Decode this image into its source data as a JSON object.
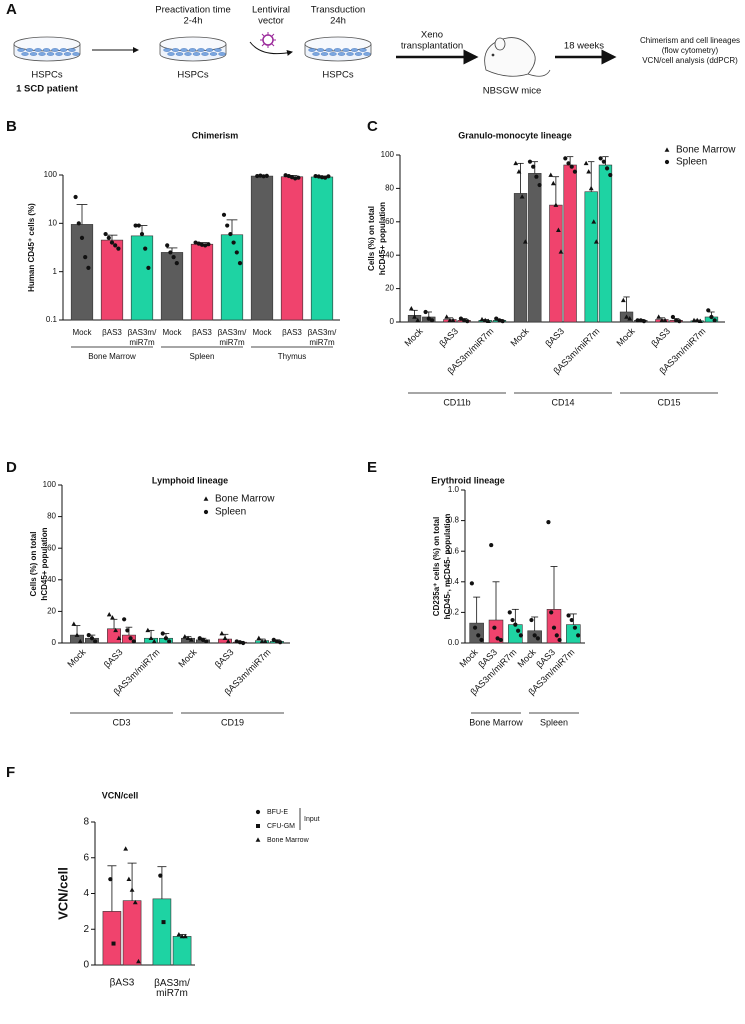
{
  "schematic": {
    "label": "A",
    "dish_labels": [
      "HSPCs",
      "HSPCs",
      "HSPCs"
    ],
    "patient": "1 SCD patient",
    "preactivation": [
      "Preactivation time",
      "2-4h"
    ],
    "vector": [
      "Lentiviral",
      "vector"
    ],
    "transduction": [
      "Transduction",
      "24h"
    ],
    "xeno": [
      "Xeno",
      "transplantation"
    ],
    "mice": "NBSGW mice",
    "weeks": "18 weeks",
    "analysis": [
      "Chimerism and cell lineages",
      "(flow cytometry)",
      "VCN/cell analysis (ddPCR)"
    ]
  },
  "chart_data": [
    {
      "type": "bar",
      "label": "B",
      "title": "Chimerism",
      "ylabel": [
        "Human CD45⁺ cells (%)"
      ],
      "log": true,
      "ylim": [
        0.1,
        100
      ],
      "yticks": [
        0.1,
        1,
        10,
        100
      ],
      "groups": [
        "Bone Marrow",
        "Spleen",
        "Thymus"
      ],
      "categories": [
        "Mock",
        "βAS3",
        "βAS3m/ miR7m"
      ],
      "colors": [
        "#5c5c5c",
        "#f0436d",
        "#1ed3a3"
      ],
      "markers": [
        "circle"
      ],
      "values": [
        [
          [
            9.5
          ],
          [
            4.5
          ],
          [
            5.5
          ]
        ],
        [
          [
            2.5
          ],
          [
            3.7
          ],
          [
            5.8
          ]
        ],
        [
          [
            95
          ],
          [
            92
          ],
          [
            91
          ]
        ]
      ],
      "errors": [
        [
          [
            15
          ],
          [
            1.2
          ],
          [
            3.5
          ]
        ],
        [
          [
            0.6
          ],
          [
            0.3
          ],
          [
            6
          ]
        ],
        [
          [
            2
          ],
          [
            6
          ],
          [
            4
          ]
        ]
      ],
      "points": [
        [
          [
            [
              35,
              10,
              5,
              2,
              1.2
            ]
          ],
          [
            [
              6,
              5,
              4,
              3.5,
              3
            ]
          ],
          [
            [
              9,
              9,
              6,
              3,
              1.2
            ]
          ]
        ],
        [
          [
            [
              3.5,
              2.5,
              2,
              1.5
            ]
          ],
          [
            [
              4,
              3.8,
              3.6,
              3.5,
              3.7
            ]
          ],
          [
            [
              15,
              9,
              6,
              4,
              2.5,
              1.5
            ]
          ]
        ],
        [
          [
            [
              95,
              97,
              94,
              96
            ]
          ],
          [
            [
              99,
              95,
              90,
              85,
              88
            ]
          ],
          [
            [
              95,
              93,
              90,
              88,
              94
            ]
          ]
        ]
      ]
    },
    {
      "type": "bar",
      "label": "C",
      "title": "Granulo-monocyte lineage",
      "ylabel": [
        "Cells (%) on total",
        "hCD45+ population"
      ],
      "ylim": [
        0,
        100
      ],
      "yticks": [
        0,
        20,
        40,
        60,
        80,
        100
      ],
      "groups": [
        "CD11b",
        "CD14",
        "CD15"
      ],
      "categories": [
        "Mock",
        "βAS3",
        "βAS3m/miR7m"
      ],
      "colors": [
        "#5c5c5c",
        "#f0436d",
        "#1ed3a3"
      ],
      "markers": [
        "triangle",
        "circle"
      ],
      "legend": [
        "Bone Marrow",
        "Spleen"
      ],
      "values": [
        [
          [
            4,
            3
          ],
          [
            1.5,
            1
          ],
          [
            1,
            1
          ]
        ],
        [
          [
            77,
            89
          ],
          [
            70,
            94
          ],
          [
            78,
            94
          ]
        ],
        [
          [
            6,
            1
          ],
          [
            1.5,
            1
          ],
          [
            0.7,
            3
          ]
        ]
      ],
      "errors": [
        [
          [
            3,
            3
          ],
          [
            1,
            1
          ],
          [
            0.5,
            0.5
          ]
        ],
        [
          [
            18,
            7
          ],
          [
            17,
            5
          ],
          [
            18,
            5
          ]
        ],
        [
          [
            9,
            0.5
          ],
          [
            1,
            1
          ],
          [
            0.5,
            3
          ]
        ]
      ],
      "points": [
        [
          [
            [
              8,
              3,
              1
            ],
            [
              6,
              2,
              1
            ]
          ],
          [
            [
              3,
              1,
              1
            ],
            [
              2,
              1,
              0.5
            ]
          ],
          [
            [
              1.5,
              1,
              0.5
            ],
            [
              2,
              1,
              0.5
            ]
          ]
        ],
        [
          [
            [
              95,
              90,
              75,
              48
            ],
            [
              96,
              93,
              87,
              82
            ]
          ],
          [
            [
              88,
              83,
              70,
              55,
              42
            ],
            [
              98,
              95,
              93,
              90
            ]
          ],
          [
            [
              95,
              90,
              80,
              60,
              48
            ],
            [
              98,
              96,
              92,
              88
            ]
          ]
        ],
        [
          [
            [
              13,
              3,
              2
            ],
            [
              1,
              1,
              0.5
            ]
          ],
          [
            [
              3,
              1,
              1
            ],
            [
              3,
              1,
              0.5
            ]
          ],
          [
            [
              1,
              1,
              0.5
            ],
            [
              7,
              3,
              1
            ]
          ]
        ]
      ]
    },
    {
      "type": "bar",
      "label": "D",
      "title": "Lymphoid lineage",
      "ylabel": [
        "Cells (%) on total",
        "hCD45+ population"
      ],
      "ylim": [
        0,
        100
      ],
      "yticks": [
        0,
        20,
        40,
        60,
        80,
        100
      ],
      "groups": [
        "CD3",
        "CD19"
      ],
      "categories": [
        "Mock",
        "βAS3",
        "βAS3m/miR7m"
      ],
      "colors": [
        "#5c5c5c",
        "#f0436d",
        "#1ed3a3"
      ],
      "markers": [
        "triangle",
        "circle"
      ],
      "legend": [
        "Bone Marrow",
        "Spleen"
      ],
      "values": [
        [
          [
            5,
            3
          ],
          [
            9,
            5
          ],
          [
            3,
            3
          ]
        ],
        [
          [
            3,
            2
          ],
          [
            2.5,
            0.5
          ],
          [
            1.5,
            1
          ]
        ]
      ],
      "errors": [
        [
          [
            6,
            2
          ],
          [
            6,
            5
          ],
          [
            5,
            3
          ]
        ],
        [
          [
            1,
            1
          ],
          [
            3,
            0.5
          ],
          [
            1,
            1
          ]
        ]
      ],
      "points": [
        [
          [
            [
              12,
              5,
              1
            ],
            [
              5,
              3,
              1
            ]
          ],
          [
            [
              18,
              16,
              8,
              3
            ],
            [
              15,
              8,
              3,
              1
            ]
          ],
          [
            [
              8,
              3,
              1
            ],
            [
              6,
              3,
              1
            ]
          ]
        ],
        [
          [
            [
              4,
              3,
              2
            ],
            [
              3,
              2,
              1
            ]
          ],
          [
            [
              6,
              3,
              1
            ],
            [
              1,
              0.5,
              0
            ]
          ],
          [
            [
              3,
              1,
              1
            ],
            [
              2,
              1,
              0.5
            ]
          ]
        ]
      ]
    },
    {
      "type": "bar",
      "label": "E",
      "title": "Erythroid lineage",
      "ylabel": [
        "CD235a⁺ cells (%) on total",
        "hCD45-, mCD45- population"
      ],
      "ylim": [
        0,
        1
      ],
      "yticks": [
        {
          "value": 0,
          "label": "0.0"
        },
        0.2,
        0.4,
        0.6,
        0.8,
        {
          "value": 1,
          "label": "1.0"
        }
      ],
      "groups": [
        "Bone Marrow",
        "Spleen"
      ],
      "categories": [
        "Mock",
        "βAS3",
        "βAS3m/miR7m"
      ],
      "colors": [
        "#5c5c5c",
        "#f0436d",
        "#1ed3a3"
      ],
      "markers": [
        "circle"
      ],
      "values": [
        [
          [
            0.13
          ],
          [
            0.15
          ],
          [
            0.12
          ]
        ],
        [
          [
            0.08
          ],
          [
            0.22
          ],
          [
            0.12
          ]
        ]
      ],
      "errors": [
        [
          [
            0.17
          ],
          [
            0.25
          ],
          [
            0.1
          ]
        ],
        [
          [
            0.09
          ],
          [
            0.28
          ],
          [
            0.07
          ]
        ]
      ],
      "points": [
        [
          [
            [
              0.39,
              0.1,
              0.05,
              0.02
            ]
          ],
          [
            [
              0.64,
              0.1,
              0.03,
              0.02
            ]
          ],
          [
            [
              0.2,
              0.15,
              0.12,
              0.08,
              0.05
            ]
          ]
        ],
        [
          [
            [
              0.15,
              0.05,
              0.03
            ]
          ],
          [
            [
              0.79,
              0.2,
              0.1,
              0.05,
              0.02
            ]
          ],
          [
            [
              0.18,
              0.15,
              0.1,
              0.05
            ]
          ]
        ]
      ]
    },
    {
      "type": "bar",
      "label": "F",
      "title": "VCN/cell",
      "ylabel": [
        "VCN/cell"
      ],
      "ylim": [
        0,
        8
      ],
      "yticks": [
        0,
        2,
        4,
        6,
        8
      ],
      "categories": [
        "βAS3",
        "βAS3m/ miR7m"
      ],
      "colors": [
        "#f0436d",
        "#1ed3a3"
      ],
      "markers": [
        "circle",
        "square",
        "triangle"
      ],
      "legend": [
        "BFU-E",
        "CFU-GM",
        "Bone Marrow"
      ],
      "legend_title": "Input",
      "values": [
        [
          [
            3.0,
            3.6
          ],
          [
            3.7,
            1.6
          ]
        ]
      ],
      "errors": [
        [
          [
            2.55,
            2.1
          ],
          [
            1.8,
            0.1
          ]
        ]
      ],
      "points": [
        [
          [
            [
              [
                4.8
              ],
              [
                1.2
              ],
              []
            ],
            [
              [],
              [],
              [
                6.5,
                4.8,
                4.2,
                3.5,
                0.2
              ]
            ]
          ],
          [
            [
              [
                5.0
              ],
              [
                2.4
              ],
              []
            ],
            [
              [],
              [],
              [
                1.7,
                1.6,
                1.6
              ]
            ]
          ]
        ]
      ]
    }
  ]
}
